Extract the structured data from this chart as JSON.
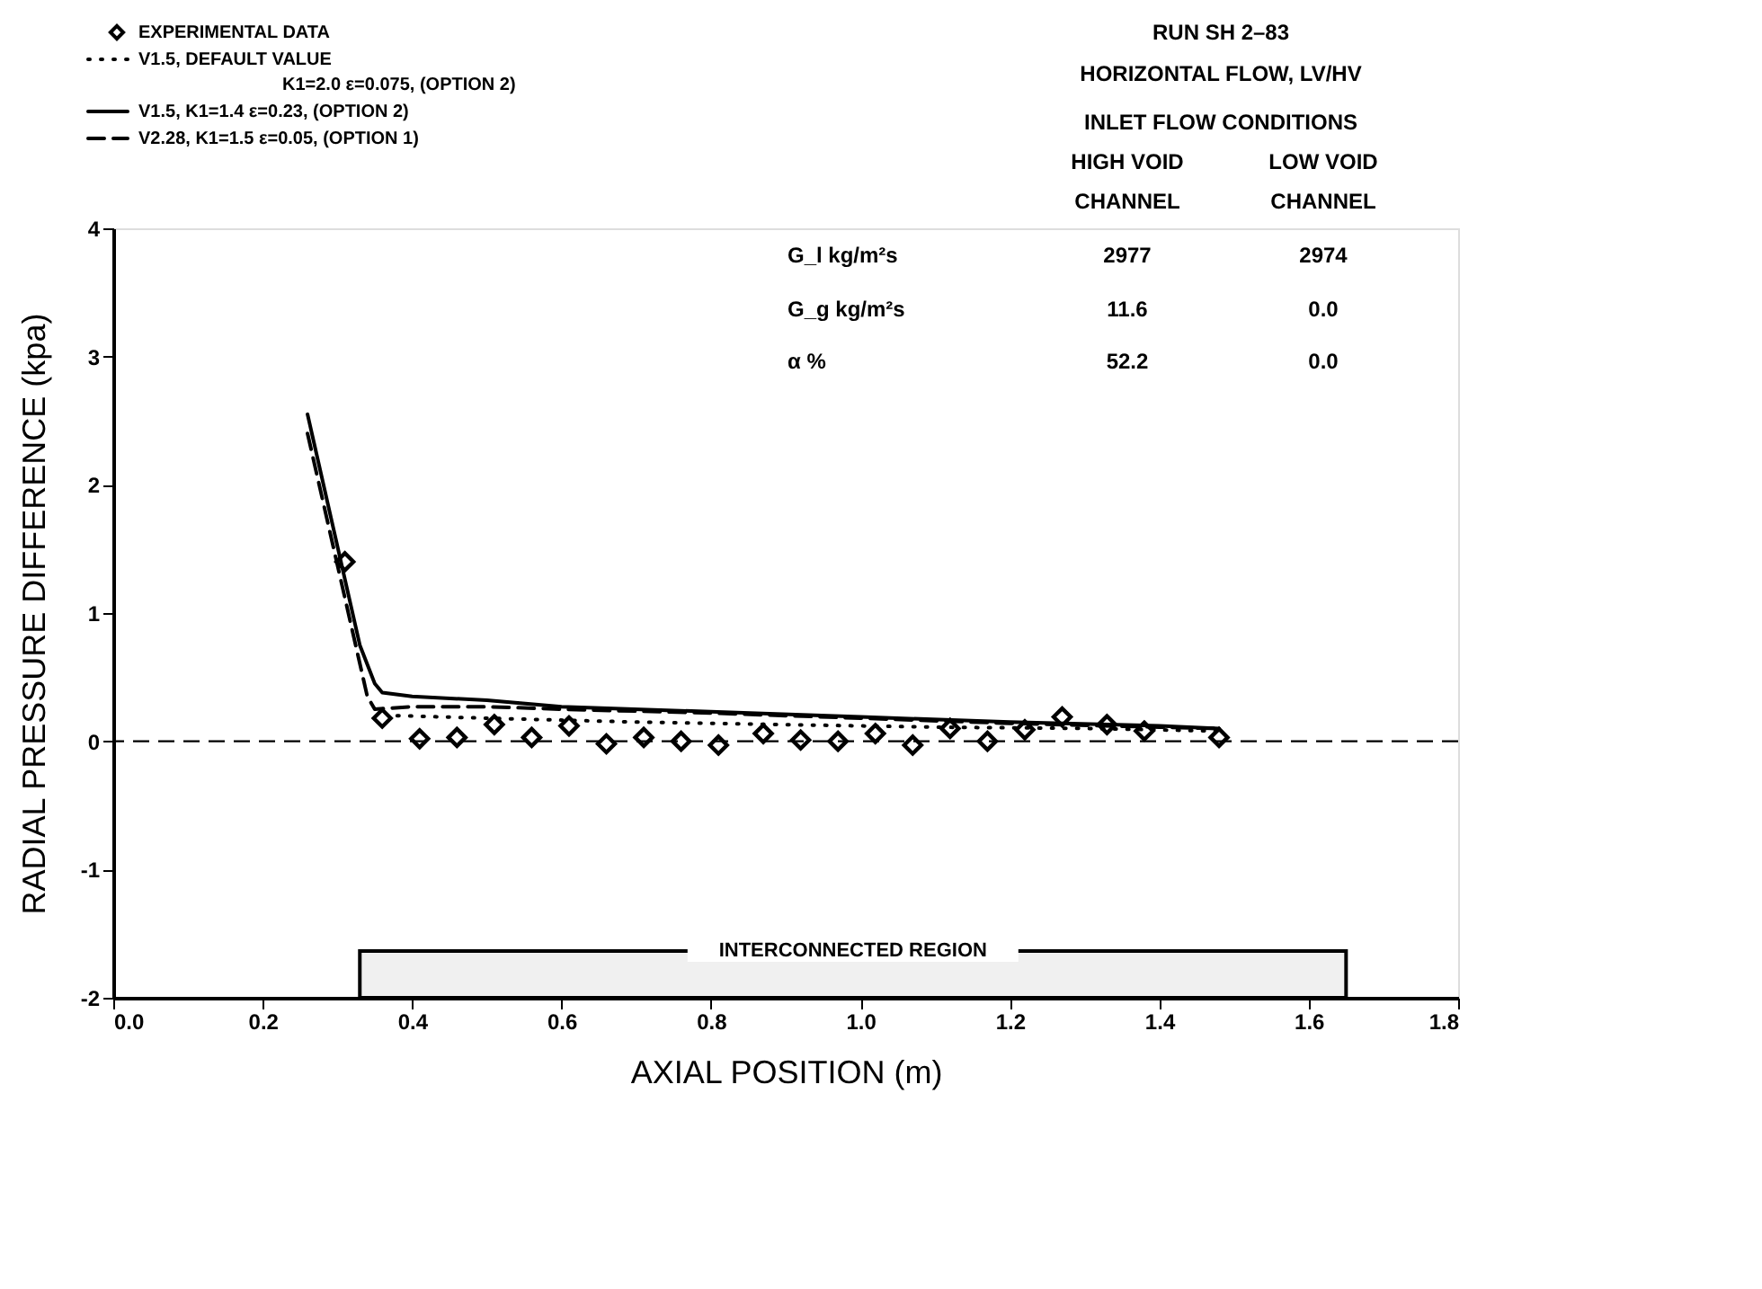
{
  "chart_data": {
    "type": "line",
    "xlabel": "AXIAL POSITION (m)",
    "ylabel": "RADIAL PRESSURE DIFFERENCE (kpa)",
    "xlim": [
      0,
      1.8
    ],
    "xticks": [
      {
        "value": 0,
        "label": "0.0"
      },
      0.2,
      0.4,
      0.6,
      0.8,
      {
        "value": 1,
        "label": "1.0"
      },
      1.2,
      1.4,
      1.6,
      1.8
    ],
    "ylim": [
      -2,
      4
    ],
    "yticks": [
      {
        "value": -2,
        "label": "-2"
      },
      {
        "value": -1,
        "label": "-1"
      },
      {
        "value": 0,
        "label": "0"
      },
      {
        "value": 1,
        "label": "1"
      },
      {
        "value": 2,
        "label": "2"
      },
      {
        "value": 3,
        "label": "3"
      },
      {
        "value": 4,
        "label": "4"
      }
    ],
    "grid": false,
    "legend": "top left",
    "series": [
      {
        "name": "EXPERIMENTAL DATA",
        "type": "scatter",
        "marker": "diamond",
        "color": "#000000",
        "x": [
          0.31,
          0.36,
          0.41,
          0.46,
          0.51,
          0.56,
          0.61,
          0.66,
          0.71,
          0.76,
          0.81,
          0.87,
          0.92,
          0.97,
          1.02,
          1.07,
          1.12,
          1.17,
          1.22,
          1.27,
          1.33,
          1.38,
          1.48
        ],
        "values": [
          1.4,
          0.18,
          0.02,
          0.03,
          0.13,
          0.03,
          0.12,
          -0.02,
          0.03,
          0.0,
          -0.03,
          0.06,
          0.01,
          0.0,
          0.06,
          -0.03,
          0.1,
          0.0,
          0.09,
          0.19,
          0.13,
          0.08,
          0.03
        ]
      },
      {
        "name": "V1.5, DEFAULT VALUE\nK1=2.0 ε=0.075, (OPTION 2)",
        "type": "line",
        "line_style": "dotted",
        "color": "#000000",
        "x": [
          0.38,
          0.5,
          0.7,
          0.9,
          1.1,
          1.3,
          1.48
        ],
        "values": [
          0.2,
          0.18,
          0.15,
          0.13,
          0.11,
          0.1,
          0.08
        ]
      },
      {
        "name": "V1.5, K1=1.4 ε=0.23, (OPTION 2)",
        "type": "line",
        "line_style": "solid",
        "color": "#000000",
        "x": [
          0.26,
          0.33,
          0.35,
          0.36,
          0.4,
          0.5,
          0.6,
          0.8,
          1.0,
          1.2,
          1.4,
          1.48
        ],
        "values": [
          2.55,
          0.75,
          0.45,
          0.38,
          0.35,
          0.32,
          0.27,
          0.23,
          0.19,
          0.15,
          0.12,
          0.1
        ]
      },
      {
        "name": "V2.28, K1=1.5 ε=0.05, (OPTION 1)",
        "type": "line",
        "line_style": "dashed",
        "color": "#000000",
        "x": [
          0.26,
          0.34,
          0.35,
          0.4,
          0.5,
          0.6,
          0.8,
          1.0,
          1.2,
          1.4,
          1.48
        ],
        "values": [
          2.4,
          0.35,
          0.25,
          0.27,
          0.27,
          0.25,
          0.22,
          0.18,
          0.14,
          0.11,
          0.1
        ]
      }
    ],
    "ref_lines": [
      {
        "axis": "y",
        "value": 0,
        "line_style": "dashed",
        "color": "#000000"
      }
    ],
    "bands": [
      {
        "axis": "x",
        "from": 0.33,
        "to": 1.65,
        "label": "INTERCONNECTED REGION",
        "color": "#000000"
      }
    ],
    "annotations": [
      "RUN SH 2–83",
      "HORIZONTAL FLOW, LV/HV",
      "INLET FLOW CONDITIONS",
      "HIGH VOID\nCHANNEL",
      "LOW VOID\nCHANNEL",
      "G_l  kg/m²s",
      "2977",
      "2974",
      "G_g  kg/m²s",
      "11.6",
      "0.0",
      "α    %",
      "52.2",
      "0.0"
    ]
  }
}
